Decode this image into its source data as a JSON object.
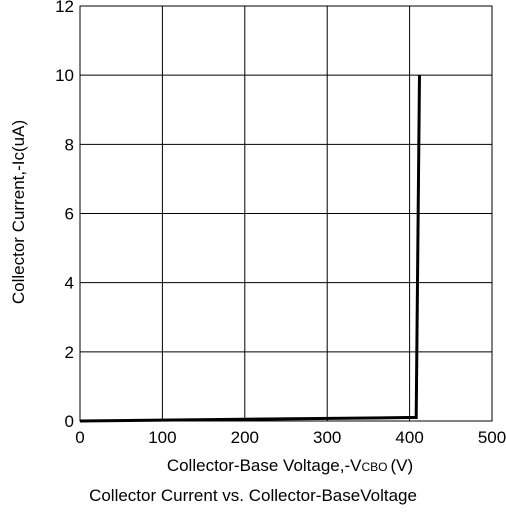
{
  "chart_data": {
    "type": "line",
    "xlabel": "Collector-Base Voltage,-V",
    "xlabel_sub": "CBO",
    "xlabel_unit": "(V)",
    "ylabel": "Collector Current,-Ic(uA)",
    "caption": "Collector Current vs. Collector-BaseVoltage",
    "xlim": [
      0,
      500
    ],
    "ylim": [
      0,
      12
    ],
    "x_ticks": [
      "0",
      "100",
      "200",
      "300",
      "400",
      "500"
    ],
    "y_ticks": [
      "0",
      "2",
      "4",
      "6",
      "8",
      "10",
      "12"
    ],
    "grid": true,
    "series": [
      {
        "x": [
          0,
          400,
          408,
          412
        ],
        "y": [
          0,
          0.1,
          0.1,
          10
        ]
      }
    ]
  }
}
